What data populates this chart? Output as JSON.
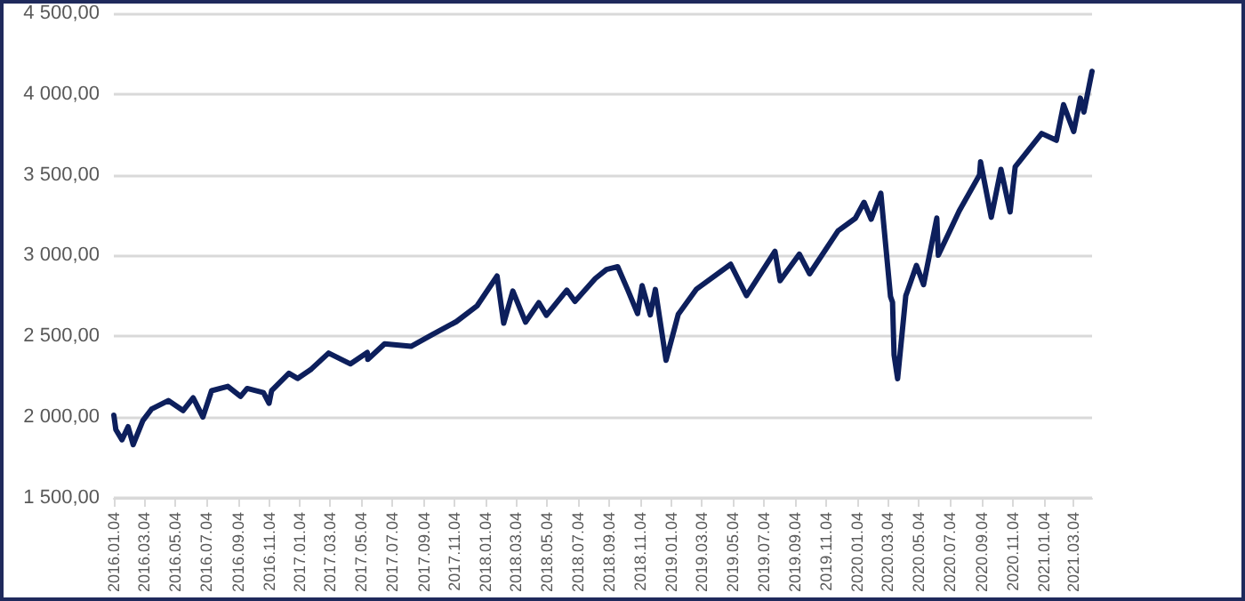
{
  "chart_data": {
    "type": "line",
    "grid": "y",
    "line_style": "solid",
    "marker": "none",
    "xlim": [
      "2016-01-04",
      "2021-04-09"
    ],
    "xticks": [
      {
        "value": "2016-01-04",
        "label": "2016.01.04"
      },
      {
        "value": "2016-03-04",
        "label": "2016.03.04"
      },
      {
        "value": "2016-05-04",
        "label": "2016.05.04"
      },
      {
        "value": "2016-07-04",
        "label": "2016.07.04"
      },
      {
        "value": "2016-09-04",
        "label": "2016.09.04"
      },
      {
        "value": "2016-11-04",
        "label": "2016.11.04"
      },
      {
        "value": "2017-01-04",
        "label": "2017.01.04"
      },
      {
        "value": "2017-03-04",
        "label": "2017.03.04"
      },
      {
        "value": "2017-05-04",
        "label": "2017.05.04"
      },
      {
        "value": "2017-07-04",
        "label": "2017.07.04"
      },
      {
        "value": "2017-09-04",
        "label": "2017.09.04"
      },
      {
        "value": "2017-11-04",
        "label": "2017.11.04"
      },
      {
        "value": "2018-01-04",
        "label": "2018.01.04"
      },
      {
        "value": "2018-03-04",
        "label": "2018.03.04"
      },
      {
        "value": "2018-05-04",
        "label": "2018.05.04"
      },
      {
        "value": "2018-07-04",
        "label": "2018.07.04"
      },
      {
        "value": "2018-09-04",
        "label": "2018.09.04"
      },
      {
        "value": "2018-11-04",
        "label": "2018.11.04"
      },
      {
        "value": "2019-01-04",
        "label": "2019.01.04"
      },
      {
        "value": "2019-03-04",
        "label": "2019.03.04"
      },
      {
        "value": "2019-05-04",
        "label": "2019.05.04"
      },
      {
        "value": "2019-07-04",
        "label": "2019.07.04"
      },
      {
        "value": "2019-09-04",
        "label": "2019.09.04"
      },
      {
        "value": "2019-11-04",
        "label": "2019.11.04"
      },
      {
        "value": "2020-01-04",
        "label": "2020.01.04"
      },
      {
        "value": "2020-03-04",
        "label": "2020.03.04"
      },
      {
        "value": "2020-05-04",
        "label": "2020.05.04"
      },
      {
        "value": "2020-07-04",
        "label": "2020.07.04"
      },
      {
        "value": "2020-09-04",
        "label": "2020.09.04"
      },
      {
        "value": "2020-11-04",
        "label": "2020.11.04"
      },
      {
        "value": "2021-01-04",
        "label": "2021.01.04"
      },
      {
        "value": "2021-03-04",
        "label": "2021.03.04"
      }
    ],
    "ylim": [
      1500,
      4500
    ],
    "yticks": [
      {
        "value": 1500,
        "label": "1 500,00"
      },
      {
        "value": 2000,
        "label": "2 000,00"
      },
      {
        "value": 2500,
        "label": "2 500,00"
      },
      {
        "value": 3000,
        "label": "3 000,00"
      },
      {
        "value": 3500,
        "label": "3 500,00"
      },
      {
        "value": 4000,
        "label": "4 000,00"
      },
      {
        "value": 4500,
        "label": "4 500,00"
      }
    ],
    "series": [
      {
        "color": "#0d1f5c",
        "x": [
          "2016-01-04",
          "2016-01-08",
          "2016-01-20",
          "2016-02-01",
          "2016-02-11",
          "2016-03-01",
          "2016-03-18",
          "2016-04-20",
          "2016-05-19",
          "2016-06-08",
          "2016-06-27",
          "2016-07-14",
          "2016-08-15",
          "2016-09-09",
          "2016-09-22",
          "2016-10-24",
          "2016-11-04",
          "2016-11-09",
          "2016-12-13",
          "2016-12-30",
          "2017-01-26",
          "2017-03-01",
          "2017-04-13",
          "2017-05-16",
          "2017-05-17",
          "2017-06-19",
          "2017-08-10",
          "2017-09-19",
          "2017-11-07",
          "2017-12-18",
          "2018-01-26",
          "2018-02-08",
          "2018-02-26",
          "2018-03-23",
          "2018-04-18",
          "2018-05-03",
          "2018-06-12",
          "2018-06-28",
          "2018-08-07",
          "2018-08-29",
          "2018-09-20",
          "2018-10-10",
          "2018-10-29",
          "2018-11-07",
          "2018-11-23",
          "2018-12-03",
          "2018-12-24",
          "2019-01-17",
          "2019-02-22",
          "2019-04-30",
          "2019-05-31",
          "2019-07-26",
          "2019-08-05",
          "2019-09-12",
          "2019-10-02",
          "2019-11-27",
          "2019-12-31",
          "2020-01-17",
          "2020-01-31",
          "2020-02-19",
          "2020-03-09",
          "2020-03-13",
          "2020-03-16",
          "2020-03-23",
          "2020-04-08",
          "2020-04-29",
          "2020-05-13",
          "2020-06-08",
          "2020-06-11",
          "2020-07-22",
          "2020-08-31",
          "2020-09-02",
          "2020-09-23",
          "2020-10-12",
          "2020-10-30",
          "2020-11-09",
          "2020-12-31",
          "2021-01-29",
          "2021-02-12",
          "2021-03-04",
          "2021-03-17",
          "2021-03-24",
          "2021-04-09"
        ],
        "values": [
          2012,
          1922,
          1859,
          1940,
          1829,
          1978,
          2049,
          2102,
          2040,
          2119,
          2000,
          2163,
          2190,
          2128,
          2177,
          2151,
          2085,
          2163,
          2271,
          2239,
          2297,
          2396,
          2329,
          2400,
          2357,
          2453,
          2438,
          2508,
          2591,
          2690,
          2873,
          2581,
          2780,
          2588,
          2708,
          2630,
          2786,
          2716,
          2858,
          2914,
          2931,
          2786,
          2641,
          2814,
          2633,
          2790,
          2351,
          2636,
          2793,
          2946,
          2752,
          3026,
          2844,
          3009,
          2887,
          3153,
          3231,
          3330,
          3225,
          3386,
          2746,
          2711,
          2386,
          2237,
          2750,
          2939,
          2820,
          3232,
          3002,
          3276,
          3500,
          3580,
          3237,
          3534,
          3270,
          3550,
          3756,
          3714,
          3934,
          3768,
          3975,
          3889,
          4141
        ]
      }
    ]
  }
}
